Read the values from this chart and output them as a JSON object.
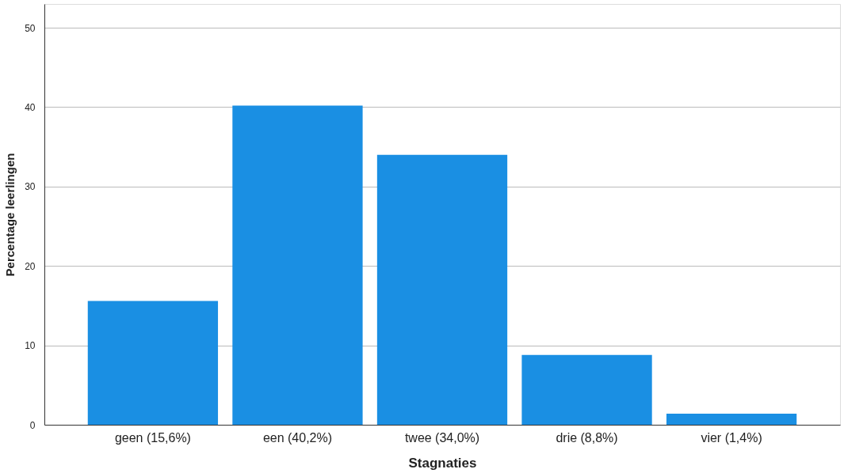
{
  "chart_data": {
    "type": "bar",
    "xlabel": "Stagnaties",
    "ylabel": "Percentage leerlingen",
    "categories": [
      "geen (15,6%)",
      "een (40,2%)",
      "twee (34,0%)",
      "drie (8,8%)",
      "vier (1,4%)"
    ],
    "values": [
      15.6,
      40.2,
      34.0,
      8.8,
      1.4
    ],
    "color": "#1a8fe3",
    "ylim": [
      0,
      53
    ],
    "yticks": [
      0,
      10,
      20,
      30,
      40,
      50
    ],
    "grid": "y"
  }
}
